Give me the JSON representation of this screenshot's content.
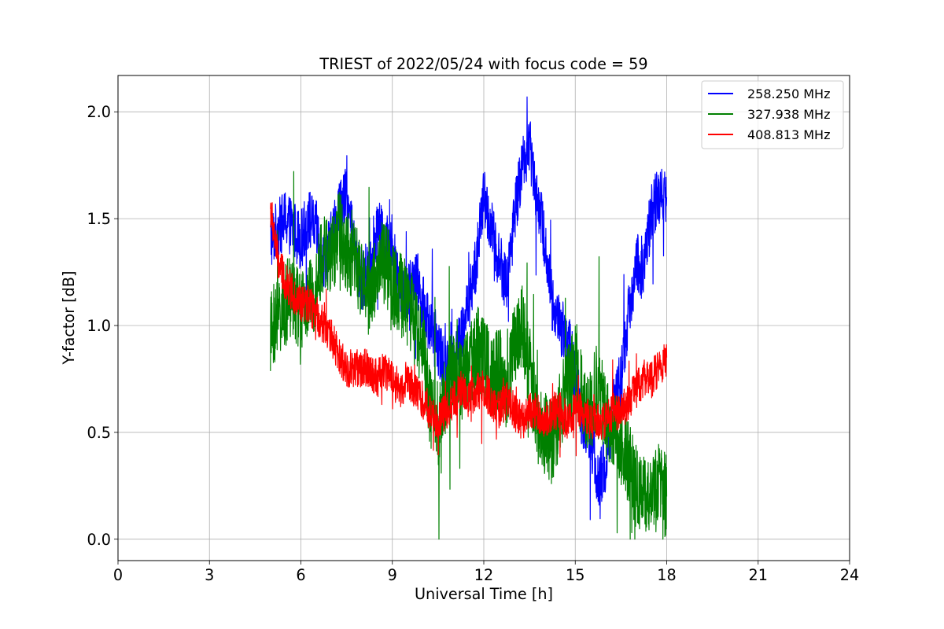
{
  "chart_data": {
    "type": "line",
    "title": "TRIEST of 2022/05/24 with focus code = 59",
    "xlabel": "Universal Time [h]",
    "ylabel": "Y-factor [dB]",
    "xlim": [
      0,
      24
    ],
    "ylim": [
      -0.1,
      2.17
    ],
    "xticks": [
      0,
      3,
      6,
      9,
      12,
      15,
      18,
      21,
      24
    ],
    "yticks": [
      0.0,
      0.5,
      1.0,
      1.5,
      2.0
    ],
    "ytick_labels": [
      "0.0",
      "0.5",
      "1.0",
      "1.5",
      "2.0"
    ],
    "grid": true,
    "legend_position": "top-right",
    "series": [
      {
        "name": "258.250 MHz",
        "color": "#0000ff",
        "x": [
          5.0,
          5.25,
          5.5,
          5.75,
          6.0,
          6.25,
          6.5,
          6.75,
          7.0,
          7.25,
          7.5,
          7.75,
          8.0,
          8.25,
          8.5,
          8.75,
          9.0,
          9.25,
          9.5,
          9.75,
          10.0,
          10.25,
          10.5,
          10.75,
          11.0,
          11.25,
          11.5,
          11.75,
          12.0,
          12.25,
          12.5,
          12.75,
          13.0,
          13.25,
          13.5,
          13.75,
          14.0,
          14.25,
          14.5,
          14.75,
          15.0,
          15.25,
          15.5,
          15.75,
          16.0,
          16.25,
          16.5,
          16.75,
          17.0,
          17.25,
          17.5,
          17.75,
          18.0
        ],
        "y": [
          1.4,
          1.45,
          1.5,
          1.45,
          1.4,
          1.5,
          1.45,
          1.3,
          1.4,
          1.55,
          1.6,
          1.35,
          1.2,
          1.3,
          1.45,
          1.4,
          1.35,
          1.2,
          1.15,
          1.25,
          1.1,
          1.0,
          0.9,
          0.8,
          0.85,
          0.95,
          1.1,
          1.3,
          1.6,
          1.45,
          1.3,
          1.2,
          1.5,
          1.75,
          1.85,
          1.6,
          1.4,
          1.1,
          1.0,
          0.95,
          0.75,
          0.55,
          0.5,
          0.25,
          0.35,
          0.6,
          0.75,
          1.05,
          1.3,
          1.25,
          1.55,
          1.6,
          1.6
        ]
      },
      {
        "name": "327.938 MHz",
        "color": "#008000",
        "x": [
          5.0,
          5.25,
          5.5,
          5.75,
          6.0,
          6.25,
          6.5,
          6.75,
          7.0,
          7.25,
          7.5,
          7.75,
          8.0,
          8.25,
          8.5,
          8.75,
          9.0,
          9.25,
          9.5,
          9.75,
          10.0,
          10.25,
          10.5,
          10.75,
          11.0,
          11.25,
          11.5,
          11.75,
          12.0,
          12.25,
          12.5,
          12.75,
          13.0,
          13.25,
          13.5,
          13.75,
          14.0,
          14.25,
          14.5,
          14.75,
          15.0,
          15.25,
          15.5,
          15.75,
          16.0,
          16.25,
          16.5,
          16.75,
          17.0,
          17.25,
          17.5,
          17.75,
          18.0
        ],
        "y": [
          0.95,
          1.05,
          1.1,
          1.15,
          1.05,
          1.1,
          1.2,
          1.35,
          1.3,
          1.45,
          1.35,
          1.3,
          1.2,
          1.15,
          1.25,
          1.3,
          1.2,
          1.15,
          1.1,
          1.0,
          0.9,
          0.6,
          0.5,
          0.7,
          0.8,
          0.75,
          0.8,
          0.9,
          0.85,
          0.75,
          0.8,
          0.7,
          0.9,
          1.0,
          0.8,
          0.55,
          0.5,
          0.45,
          0.6,
          0.7,
          0.8,
          0.65,
          0.6,
          0.75,
          0.55,
          0.5,
          0.45,
          0.35,
          0.25,
          0.2,
          0.2,
          0.25,
          0.2
        ]
      },
      {
        "name": "408.813 MHz",
        "color": "#ff0000",
        "x": [
          5.0,
          5.25,
          5.5,
          5.75,
          6.0,
          6.25,
          6.5,
          6.75,
          7.0,
          7.25,
          7.5,
          7.75,
          8.0,
          8.25,
          8.5,
          8.75,
          9.0,
          9.25,
          9.5,
          9.75,
          10.0,
          10.25,
          10.5,
          10.75,
          11.0,
          11.25,
          11.5,
          11.75,
          12.0,
          12.25,
          12.5,
          12.75,
          13.0,
          13.25,
          13.5,
          13.75,
          14.0,
          14.25,
          14.5,
          14.75,
          15.0,
          15.25,
          15.5,
          15.75,
          16.0,
          16.25,
          16.5,
          16.75,
          17.0,
          17.25,
          17.5,
          17.75,
          18.0
        ],
        "y": [
          1.55,
          1.3,
          1.2,
          1.15,
          1.1,
          1.1,
          1.05,
          1.0,
          0.95,
          0.85,
          0.8,
          0.8,
          0.8,
          0.8,
          0.75,
          0.8,
          0.75,
          0.7,
          0.75,
          0.7,
          0.65,
          0.6,
          0.55,
          0.6,
          0.65,
          0.7,
          0.65,
          0.7,
          0.7,
          0.65,
          0.6,
          0.65,
          0.6,
          0.55,
          0.6,
          0.6,
          0.55,
          0.6,
          0.6,
          0.55,
          0.6,
          0.6,
          0.55,
          0.55,
          0.55,
          0.6,
          0.6,
          0.65,
          0.7,
          0.75,
          0.75,
          0.8,
          0.85
        ]
      }
    ]
  }
}
